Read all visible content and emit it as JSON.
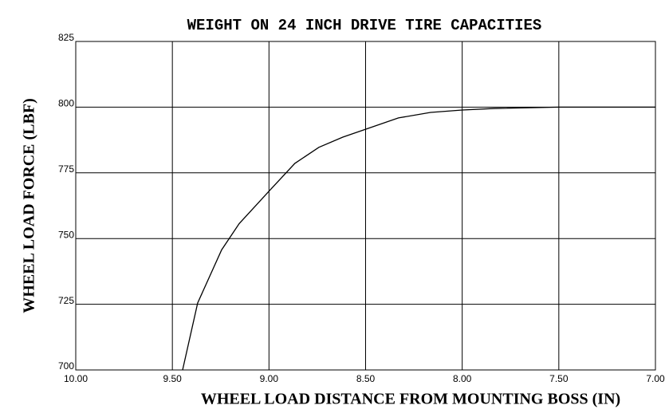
{
  "chart_data": {
    "type": "line",
    "title": "WEIGHT ON 24 INCH DRIVE TIRE CAPACITIES",
    "x_label": "WHEEL LOAD DISTANCE FROM MOUNTING BOSS (IN)",
    "y_label": "WHEEL LOAD FORCE (LBF)",
    "x": [
      9.447,
      9.369,
      9.245,
      9.154,
      9.0,
      8.866,
      8.742,
      8.618,
      8.5,
      8.33,
      8.164,
      8.0,
      7.834,
      7.5,
      7.0
    ],
    "series": [
      {
        "color": "#000000",
        "values": [
          700,
          725.5,
          745.7,
          755.7,
          768,
          778.6,
          784.7,
          788.6,
          791.6,
          795.9,
          798,
          798.9,
          799.5,
          800,
          800
        ]
      }
    ],
    "xlim": [
      10,
      7
    ],
    "xticks": [
      {
        "value": 10,
        "label": "10.00"
      },
      {
        "value": 9.5,
        "label": "9.50"
      },
      {
        "value": 9,
        "label": "9.00"
      },
      {
        "value": 8.5,
        "label": "8.50"
      },
      {
        "value": 8,
        "label": "8.00"
      },
      {
        "value": 7.5,
        "label": "7.50"
      },
      {
        "value": 7,
        "label": "7.00"
      }
    ],
    "ylim": [
      700,
      825
    ],
    "yticks": [
      700,
      725,
      750,
      775,
      800,
      825
    ],
    "grid": true
  }
}
